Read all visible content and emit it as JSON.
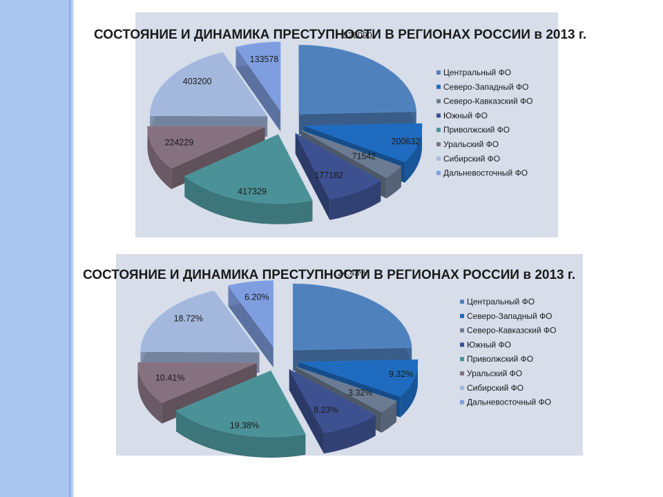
{
  "chart_data": [
    {
      "type": "pie",
      "title": "СОСТОЯНИЕ И ДИНАМИКА ПРЕСТУПНОСТИ В РЕГИОНАХ РОССИИ в 2013 г.",
      "categories": [
        "Центральный ФО",
        "Северо-Западный ФО",
        "Северо-Кавказский ФО",
        "Южный ФО",
        "Приволжский ФО",
        "Уральский ФО",
        "Сибирский ФО",
        "Дальневосточный ФО"
      ],
      "values": [
        526090,
        200632,
        71542,
        177182,
        417329,
        224229,
        403200,
        133578
      ],
      "data_labels": [
        "526090",
        "200632",
        "71542",
        "177182",
        "417329",
        "224229",
        "403200",
        "133578"
      ],
      "colors": [
        "#4f81bd",
        "#1f6bbf",
        "#6b7b92",
        "#3d5191",
        "#4b9298",
        "#85717f",
        "#a3b8dc",
        "#7f9ee0"
      ],
      "legend_position": "right",
      "style": "exploded-3d"
    },
    {
      "type": "pie",
      "title": "СОСТОЯНИЕ И ДИНАМИКА ПРЕСТУПНОСТИ В РЕГИОНАХ РОССИИ в 2013 г.",
      "categories": [
        "Центральный ФО",
        "Северо-Западный ФО",
        "Северо-Кавказский ФО",
        "Южный ФО",
        "Приволжский ФО",
        "Уральский ФО",
        "Сибирский ФО",
        "Дальневосточный ФО"
      ],
      "values": [
        24.43,
        9.32,
        3.32,
        8.23,
        19.38,
        10.41,
        18.72,
        6.2
      ],
      "data_labels": [
        "24.43%",
        "9.32%",
        "3.32%",
        "8.23%",
        "19.38%",
        "10.41%",
        "18.72%",
        "6.20%"
      ],
      "colors": [
        "#4f81bd",
        "#1f6bbf",
        "#6b7b92",
        "#3d5191",
        "#4b9298",
        "#85717f",
        "#a3b8dc",
        "#7f9ee0"
      ],
      "legend_position": "right",
      "style": "exploded-3d"
    }
  ]
}
